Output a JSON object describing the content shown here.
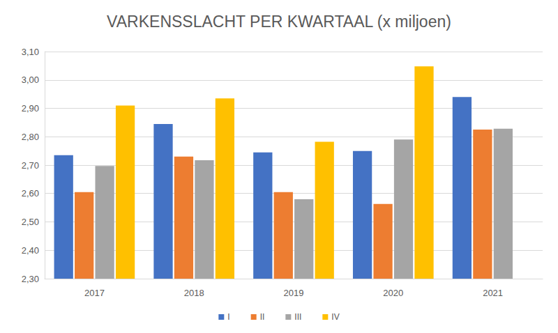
{
  "chart_data": {
    "type": "bar",
    "title": "VARKENSSLACHT PER KWARTAAL (x miljoen)",
    "categories": [
      "2017",
      "2018",
      "2019",
      "2020",
      "2021"
    ],
    "series": [
      {
        "name": "I",
        "color": "#4472c4",
        "values": [
          2.735,
          2.845,
          2.745,
          2.75,
          2.94
        ]
      },
      {
        "name": "II",
        "color": "#ed7d31",
        "values": [
          2.605,
          2.73,
          2.605,
          2.563,
          2.825
        ]
      },
      {
        "name": "III",
        "color": "#a5a5a5",
        "values": [
          2.697,
          2.717,
          2.58,
          2.79,
          2.828
        ]
      },
      {
        "name": "IV",
        "color": "#ffc000",
        "values": [
          2.91,
          2.935,
          2.782,
          3.048,
          null
        ]
      }
    ],
    "ylim": [
      2.3,
      3.1
    ],
    "yticks": [
      {
        "value": 2.3,
        "label": "2,30"
      },
      {
        "value": 2.4,
        "label": "2,40"
      },
      {
        "value": 2.5,
        "label": "2,50"
      },
      {
        "value": 2.6,
        "label": "2,60"
      },
      {
        "value": 2.7,
        "label": "2,70"
      },
      {
        "value": 2.8,
        "label": "2,80"
      },
      {
        "value": 2.9,
        "label": "2,90"
      },
      {
        "value": 3.0,
        "label": "3,00"
      },
      {
        "value": 3.1,
        "label": "3,10"
      }
    ],
    "grid": true,
    "legend": "bottom"
  }
}
